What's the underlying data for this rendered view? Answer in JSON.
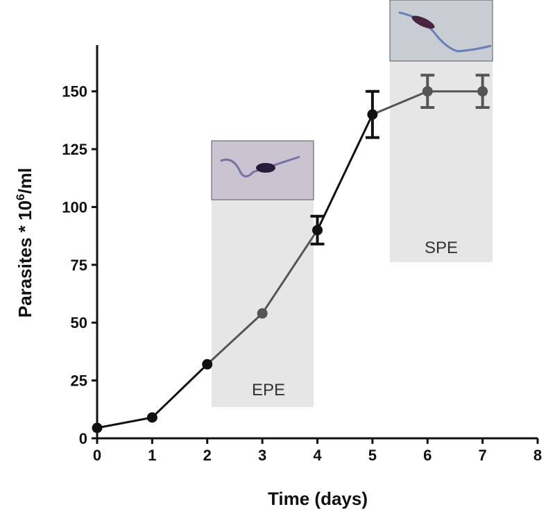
{
  "chart_data": {
    "type": "line",
    "x_label": "Time (days)",
    "y_label_parts": [
      "Parasites * 10",
      "6",
      "/ml"
    ],
    "annotations": [
      "EPE",
      "SPE"
    ],
    "x": [
      0,
      1,
      2,
      3,
      4,
      5,
      6,
      7
    ],
    "series": [
      {
        "values": [
          4.5,
          9,
          32,
          54,
          90,
          140,
          150,
          150
        ],
        "errors": [
          null,
          null,
          null,
          null,
          6,
          10,
          7,
          7
        ],
        "point_colors": [
          "#111111",
          "#111111",
          "#111111",
          "#555555",
          "#111111",
          "#111111",
          "#555555",
          "#555555"
        ]
      }
    ],
    "xlim": [
      0,
      8
    ],
    "xticks": [
      0,
      1,
      2,
      3,
      4,
      5,
      6,
      7,
      8
    ],
    "ylim": [
      0,
      170
    ],
    "yticks": [
      0,
      25,
      50,
      75,
      100,
      125,
      150
    ]
  }
}
